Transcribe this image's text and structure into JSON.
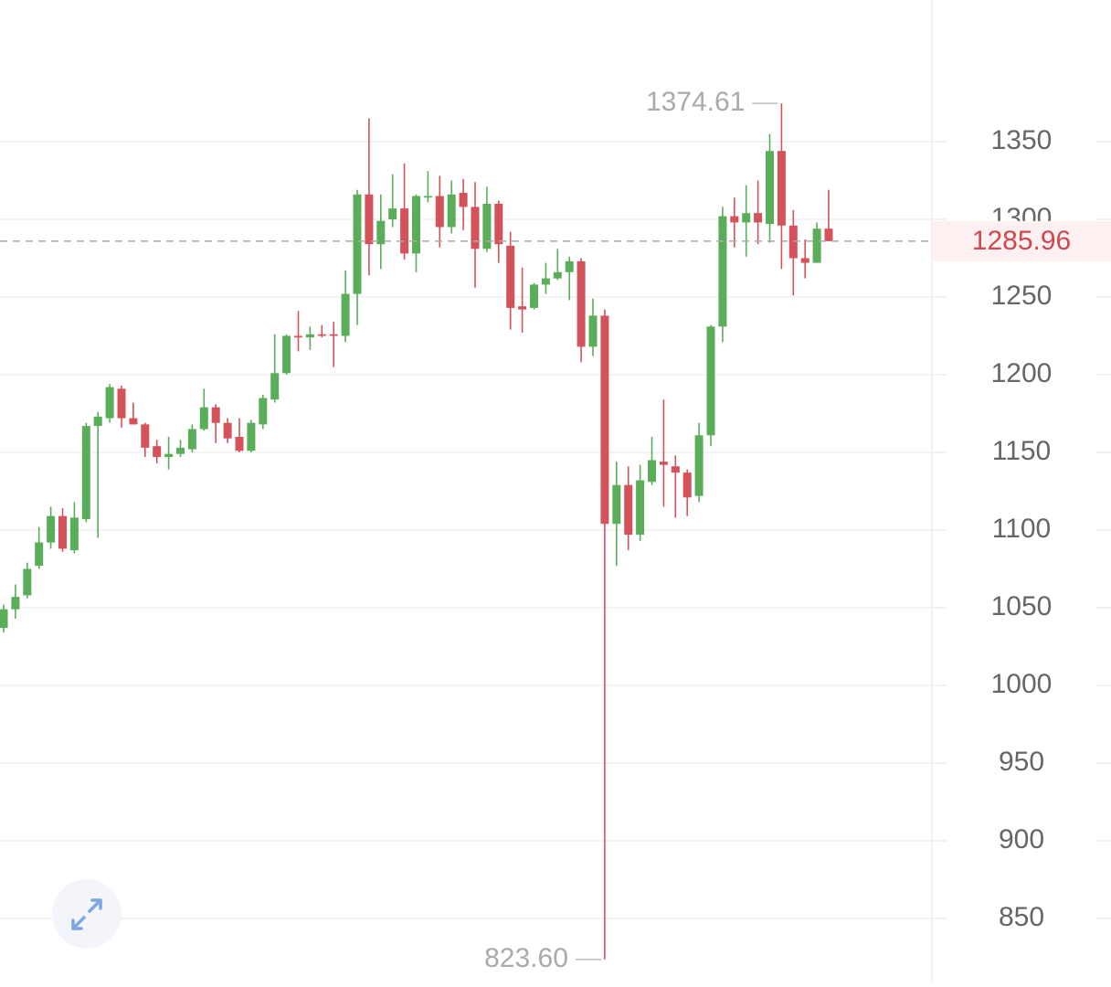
{
  "chart_data": {
    "type": "candlestick",
    "up_color": "#5aae5a",
    "down_color": "#d4525a",
    "grid": true,
    "ylim": [
      808.82,
      1441.18
    ],
    "yticks": [
      850,
      900,
      950,
      1000,
      1050,
      1100,
      1150,
      1200,
      1250,
      1300,
      1350
    ],
    "open": [
      1037,
      1049,
      1058,
      1077,
      1092,
      1109,
      1087,
      1107,
      1167,
      1172,
      1191,
      1172,
      1168,
      1154,
      1147,
      1149,
      1152,
      1165,
      1179,
      1169,
      1160,
      1151,
      1168,
      1184,
      1201,
      1225,
      1224,
      1226,
      1226,
      1225,
      1252,
      1316,
      1284,
      1300,
      1307,
      1278,
      1314,
      1315,
      1295,
      1317,
      1308,
      1281,
      1310,
      1283,
      1244,
      1243,
      1258,
      1262,
      1266,
      1273,
      1218,
      1238,
      1104,
      1129,
      1097,
      1131,
      1144,
      1141,
      1137,
      1122,
      1161,
      1231,
      1302,
      1298,
      1304,
      1297,
      1344,
      1296,
      1275,
      1272,
      1294
    ],
    "high": [
      1052,
      1065,
      1079,
      1102,
      1115,
      1114,
      1118,
      1169,
      1176,
      1194,
      1193,
      1182,
      1169,
      1158,
      1160,
      1158,
      1168,
      1191,
      1181,
      1172,
      1172,
      1171,
      1187,
      1226,
      1226,
      1241,
      1231,
      1232,
      1234,
      1267,
      1319,
      1365,
      1316,
      1329,
      1336,
      1316,
      1331,
      1328,
      1325,
      1326,
      1324,
      1321,
      1312,
      1292,
      1269,
      1259,
      1272,
      1281,
      1276,
      1275,
      1249,
      1242,
      1144,
      1141,
      1142,
      1160,
      1184,
      1148,
      1139,
      1169,
      1232,
      1308,
      1314,
      1322,
      1325,
      1355,
      1374.61,
      1306,
      1287,
      1298,
      1319
    ],
    "low": [
      1034,
      1043,
      1056,
      1075,
      1088,
      1086,
      1085,
      1105,
      1095,
      1169,
      1166,
      1168,
      1147,
      1143,
      1139,
      1147,
      1150,
      1164,
      1156,
      1156,
      1150,
      1150,
      1165,
      1182,
      1200,
      1215,
      1216,
      1224,
      1205,
      1221,
      1232,
      1264,
      1268,
      1295,
      1274,
      1266,
      1311,
      1282,
      1291,
      1293,
      1256,
      1279,
      1272,
      1229,
      1227,
      1242,
      1252,
      1261,
      1248,
      1208,
      1212,
      823.6,
      1077,
      1087,
      1093,
      1129,
      1115,
      1108,
      1109,
      1118,
      1154,
      1221,
      1282,
      1276,
      1284,
      1285,
      1268,
      1251,
      1262,
      1272,
      1286
    ],
    "close": [
      1049,
      1057,
      1075,
      1092,
      1109,
      1088,
      1108,
      1167,
      1173,
      1192,
      1172,
      1168,
      1153,
      1147,
      1149,
      1153,
      1165,
      1179,
      1169,
      1159,
      1151,
      1169,
      1185,
      1201,
      1225,
      1224,
      1226,
      1225,
      1225,
      1252,
      1316,
      1284,
      1299,
      1307,
      1278,
      1315,
      1315,
      1295,
      1316,
      1308,
      1281,
      1310,
      1284,
      1243,
      1242,
      1258,
      1262,
      1266,
      1273,
      1218,
      1238,
      1104,
      1129,
      1097,
      1132,
      1145,
      1142,
      1137,
      1121,
      1161,
      1231,
      1302,
      1298,
      1304,
      1298,
      1344,
      1296,
      1275,
      1272,
      1294,
      1285.96
    ],
    "annotations": [
      {
        "value": 1374.61,
        "label": "1374.61"
      },
      {
        "value": 823.6,
        "label": "823.60"
      }
    ],
    "current_price": {
      "value": 1285.96,
      "label": "1285.96"
    }
  }
}
